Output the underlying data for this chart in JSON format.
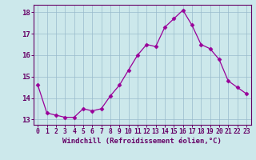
{
  "x": [
    0,
    1,
    2,
    3,
    4,
    5,
    6,
    7,
    8,
    9,
    10,
    11,
    12,
    13,
    14,
    15,
    16,
    17,
    18,
    19,
    20,
    21,
    22,
    23
  ],
  "y": [
    14.6,
    13.3,
    13.2,
    13.1,
    13.1,
    13.5,
    13.4,
    13.5,
    14.1,
    14.6,
    15.3,
    16.0,
    16.5,
    16.4,
    17.3,
    17.7,
    18.1,
    17.4,
    16.5,
    16.3,
    15.8,
    14.8,
    14.5,
    14.2
  ],
  "line_color": "#990099",
  "marker": "D",
  "marker_size": 2.5,
  "line_width": 0.9,
  "xlim": [
    -0.5,
    23.5
  ],
  "ylim": [
    12.75,
    18.35
  ],
  "yticks": [
    13,
    14,
    15,
    16,
    17,
    18
  ],
  "xticks": [
    0,
    1,
    2,
    3,
    4,
    5,
    6,
    7,
    8,
    9,
    10,
    11,
    12,
    13,
    14,
    15,
    16,
    17,
    18,
    19,
    20,
    21,
    22,
    23
  ],
  "xlabel": "Windchill (Refroidissement éolien,°C)",
  "bg_color": "#cce8eb",
  "grid_color": "#99bbcc",
  "axis_color": "#660066",
  "tick_label_color": "#660066",
  "xlabel_color": "#660066",
  "xlabel_fontsize": 6.5,
  "tick_fontsize": 5.8,
  "ytick_fontsize": 6.5
}
